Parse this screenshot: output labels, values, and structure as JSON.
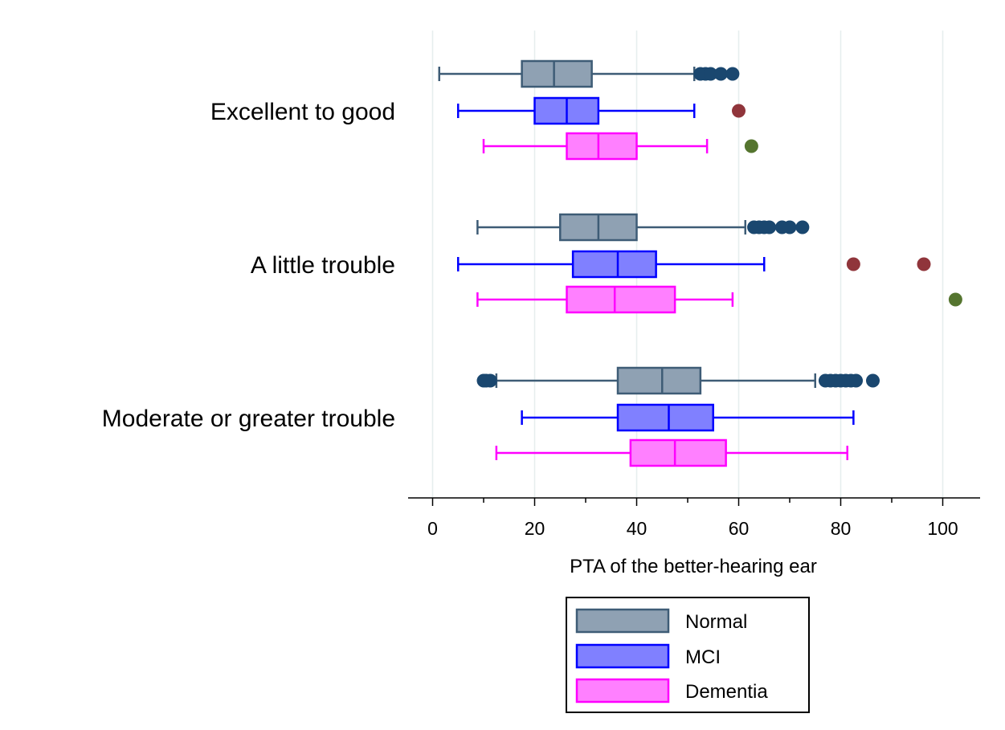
{
  "chart_data": {
    "type": "boxplot",
    "orientation": "horizontal",
    "title": "",
    "xlabel": "PTA of the better-hearing ear",
    "ylabel": "",
    "xlim": [
      -6,
      108
    ],
    "xticks": [
      0,
      20,
      40,
      60,
      80,
      100
    ],
    "minor_xticks": [
      10,
      30,
      50,
      70,
      90
    ],
    "grid": true,
    "legend_position": "bottom-center",
    "categories": [
      "Excellent to good",
      "A little trouble",
      "Moderate or greater trouble"
    ],
    "series": [
      {
        "name": "Normal",
        "color": "#8fa1b3",
        "edge_color": "#3e5c76",
        "outlier_color": "#1a476f",
        "boxes": [
          {
            "whisker_low": 1.3,
            "q1": 17.5,
            "median": 23.8,
            "q3": 31.2,
            "whisker_high": 51.3,
            "outliers": [
              52.5,
              53.5,
              54.5,
              56.5,
              58.8
            ]
          },
          {
            "whisker_low": 8.8,
            "q1": 25.0,
            "median": 32.5,
            "q3": 40.0,
            "whisker_high": 61.3,
            "outliers": [
              63.0,
              64.0,
              65.0,
              66.0,
              68.5,
              70.0,
              72.5
            ]
          },
          {
            "whisker_low": 12.5,
            "q1": 36.3,
            "median": 45.0,
            "q3": 52.5,
            "whisker_high": 75.0,
            "outliers": [
              10.0,
              10.5,
              11.3,
              77.0,
              78.0,
              79.0,
              80.0,
              81.0,
              82.0,
              83.0,
              86.3
            ]
          }
        ]
      },
      {
        "name": "MCI",
        "color": "#8080ff",
        "edge_color": "#0000ff",
        "outlier_color": "#90353b",
        "boxes": [
          {
            "whisker_low": 5.0,
            "q1": 20.0,
            "median": 26.3,
            "q3": 32.5,
            "whisker_high": 51.3,
            "outliers": [
              60.0
            ]
          },
          {
            "whisker_low": 5.0,
            "q1": 27.5,
            "median": 36.3,
            "q3": 43.8,
            "whisker_high": 65.0,
            "outliers": [
              82.5,
              96.3
            ]
          },
          {
            "whisker_low": 17.5,
            "q1": 36.3,
            "median": 46.3,
            "q3": 55.0,
            "whisker_high": 82.5,
            "outliers": []
          }
        ]
      },
      {
        "name": "Dementia",
        "color": "#ff80ff",
        "edge_color": "#ff00ff",
        "outlier_color": "#55752f",
        "boxes": [
          {
            "whisker_low": 10.0,
            "q1": 26.3,
            "median": 32.5,
            "q3": 40.0,
            "whisker_high": 53.8,
            "outliers": [
              62.5
            ]
          },
          {
            "whisker_low": 8.8,
            "q1": 26.3,
            "median": 35.7,
            "q3": 47.5,
            "whisker_high": 58.8,
            "outliers": [
              102.5
            ]
          },
          {
            "whisker_low": 12.5,
            "q1": 38.8,
            "median": 47.5,
            "q3": 57.5,
            "whisker_high": 81.3,
            "outliers": []
          }
        ]
      }
    ]
  }
}
